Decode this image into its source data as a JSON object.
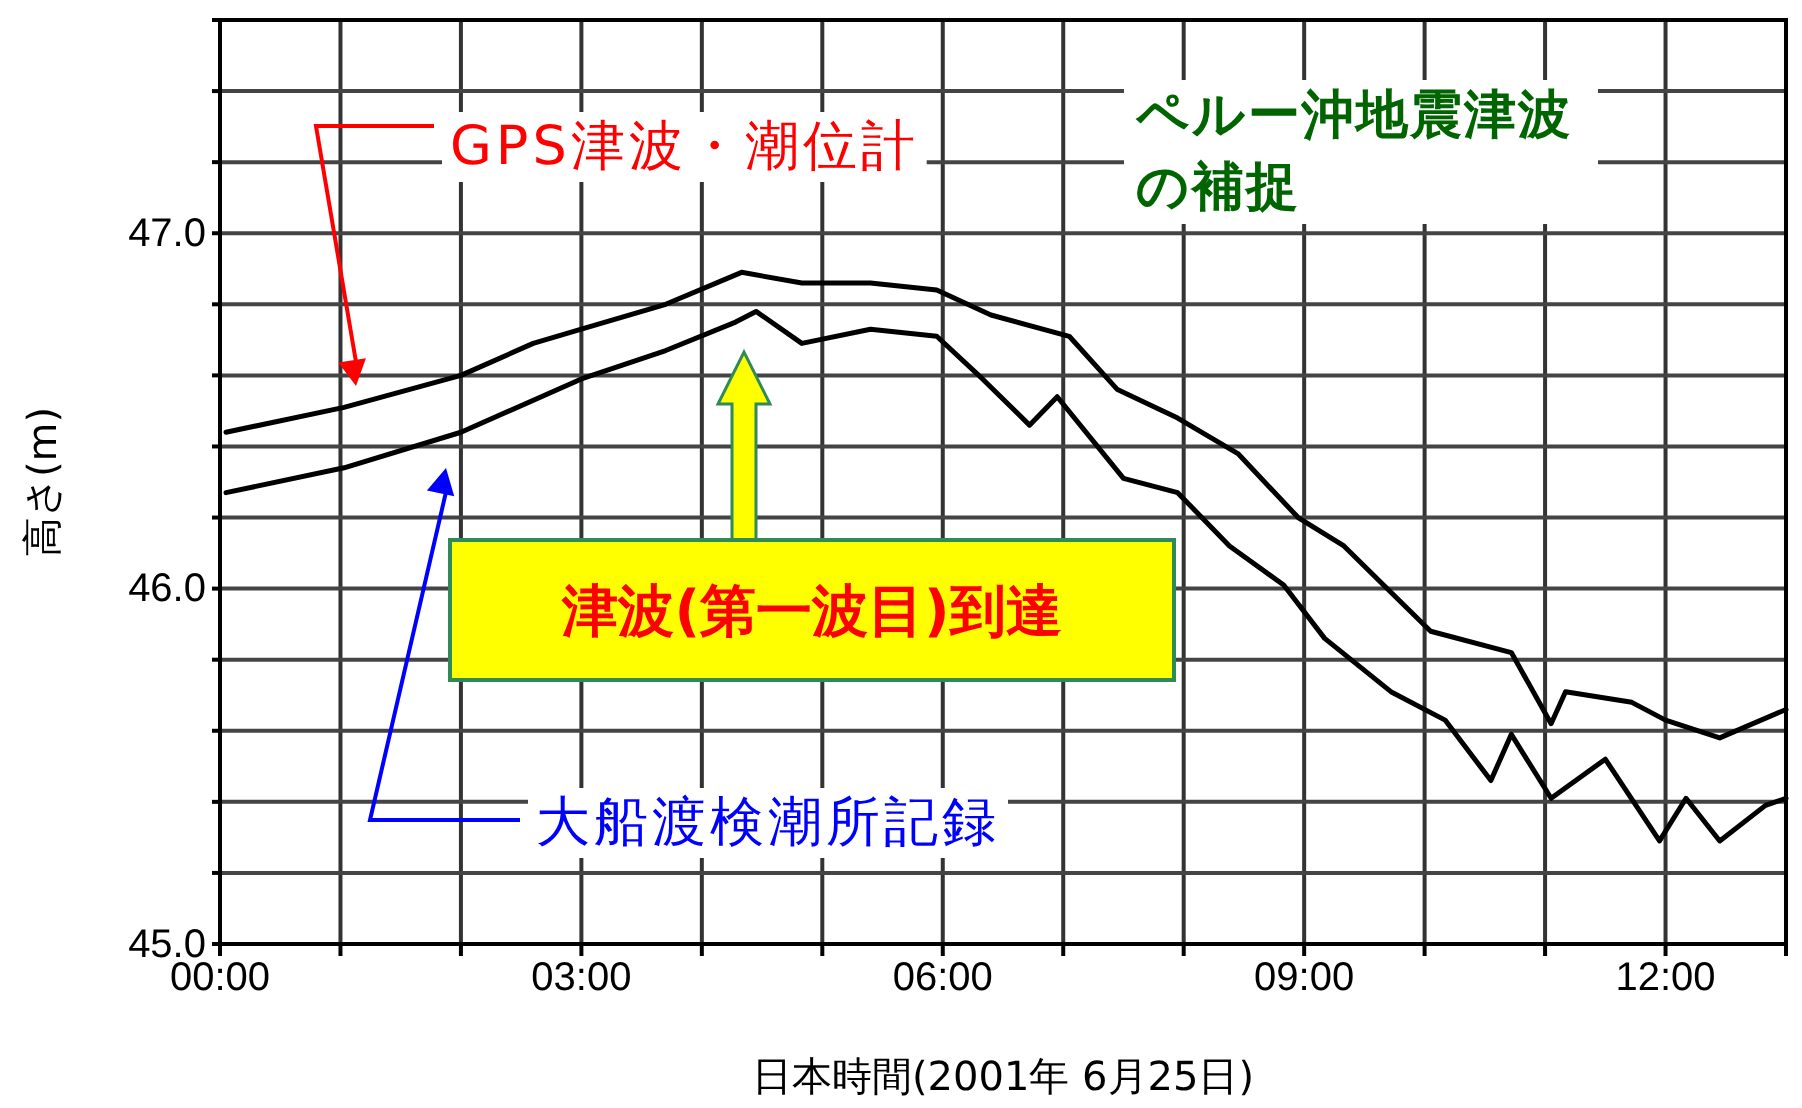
{
  "chart_data": {
    "type": "line",
    "title": "ペルー沖地震津波の補捉",
    "xlabel": "日本時間(2001年 6月25日)",
    "ylabel": "高さ(m)",
    "xlim": [
      0,
      13
    ],
    "ylim": [
      45,
      47.6
    ],
    "xticks": [
      {
        "value": 0,
        "label": "00:00"
      },
      {
        "value": 1,
        "label": null
      },
      {
        "value": 2,
        "label": null
      },
      {
        "value": 3,
        "label": "03:00"
      },
      {
        "value": 4,
        "label": null
      },
      {
        "value": 5,
        "label": null
      },
      {
        "value": 6,
        "label": "06:00"
      },
      {
        "value": 7,
        "label": null
      },
      {
        "value": 8,
        "label": null
      },
      {
        "value": 9,
        "label": "09:00"
      },
      {
        "value": 10,
        "label": null
      },
      {
        "value": 11,
        "label": null
      },
      {
        "value": 12,
        "label": "12:00"
      }
    ],
    "yticks": [
      {
        "value": 45,
        "label": "45.0"
      },
      {
        "value": 45.2,
        "label": null
      },
      {
        "value": 45.4,
        "label": null
      },
      {
        "value": 45.6,
        "label": null
      },
      {
        "value": 45.8,
        "label": null
      },
      {
        "value": 46,
        "label": "46.0"
      },
      {
        "value": 46.2,
        "label": null
      },
      {
        "value": 46.4,
        "label": null
      },
      {
        "value": 46.6,
        "label": null
      },
      {
        "value": 46.8,
        "label": null
      },
      {
        "value": 47,
        "label": "47.0"
      },
      {
        "value": 47.2,
        "label": null
      },
      {
        "value": 47.4,
        "label": null
      }
    ],
    "grid": true,
    "series": [
      {
        "color": "#000000",
        "x": [
          0.05,
          1.03,
          2.0,
          2.6,
          3.0,
          3.7,
          4.33,
          4.83,
          5.4,
          5.95,
          6.4,
          7.05,
          7.45,
          7.95,
          8.45,
          8.95,
          9.33,
          9.72,
          10.05,
          10.72,
          11.05,
          11.17,
          11.72,
          12.0,
          12.45,
          13.0
        ],
        "values": [
          46.44,
          46.51,
          46.6,
          46.69,
          46.73,
          46.8,
          46.89,
          46.86,
          46.86,
          46.84,
          46.77,
          46.71,
          46.56,
          46.48,
          46.38,
          46.2,
          46.12,
          45.99,
          45.88,
          45.82,
          45.62,
          45.71,
          45.68,
          45.63,
          45.58,
          45.66
        ]
      },
      {
        "color": "#000000",
        "x": [
          0.05,
          1.03,
          2.0,
          3.0,
          3.7,
          4.28,
          4.45,
          4.83,
          5.4,
          5.95,
          6.33,
          6.72,
          6.95,
          7.5,
          7.95,
          8.38,
          8.83,
          9.17,
          9.72,
          10.17,
          10.55,
          10.72,
          11.05,
          11.5,
          11.95,
          12.17,
          12.45,
          12.83,
          13.0
        ],
        "values": [
          46.27,
          46.34,
          46.44,
          46.59,
          46.67,
          46.75,
          46.78,
          46.69,
          46.73,
          46.71,
          46.59,
          46.46,
          46.54,
          46.31,
          46.27,
          46.12,
          46.01,
          45.86,
          45.71,
          45.63,
          45.46,
          45.59,
          45.41,
          45.52,
          45.29,
          45.41,
          45.29,
          45.39,
          45.41
        ]
      }
    ],
    "annotations": [
      "GPS津波・潮位計",
      "大船渡検潮所記録",
      "津波(第一波目)到達"
    ]
  }
}
